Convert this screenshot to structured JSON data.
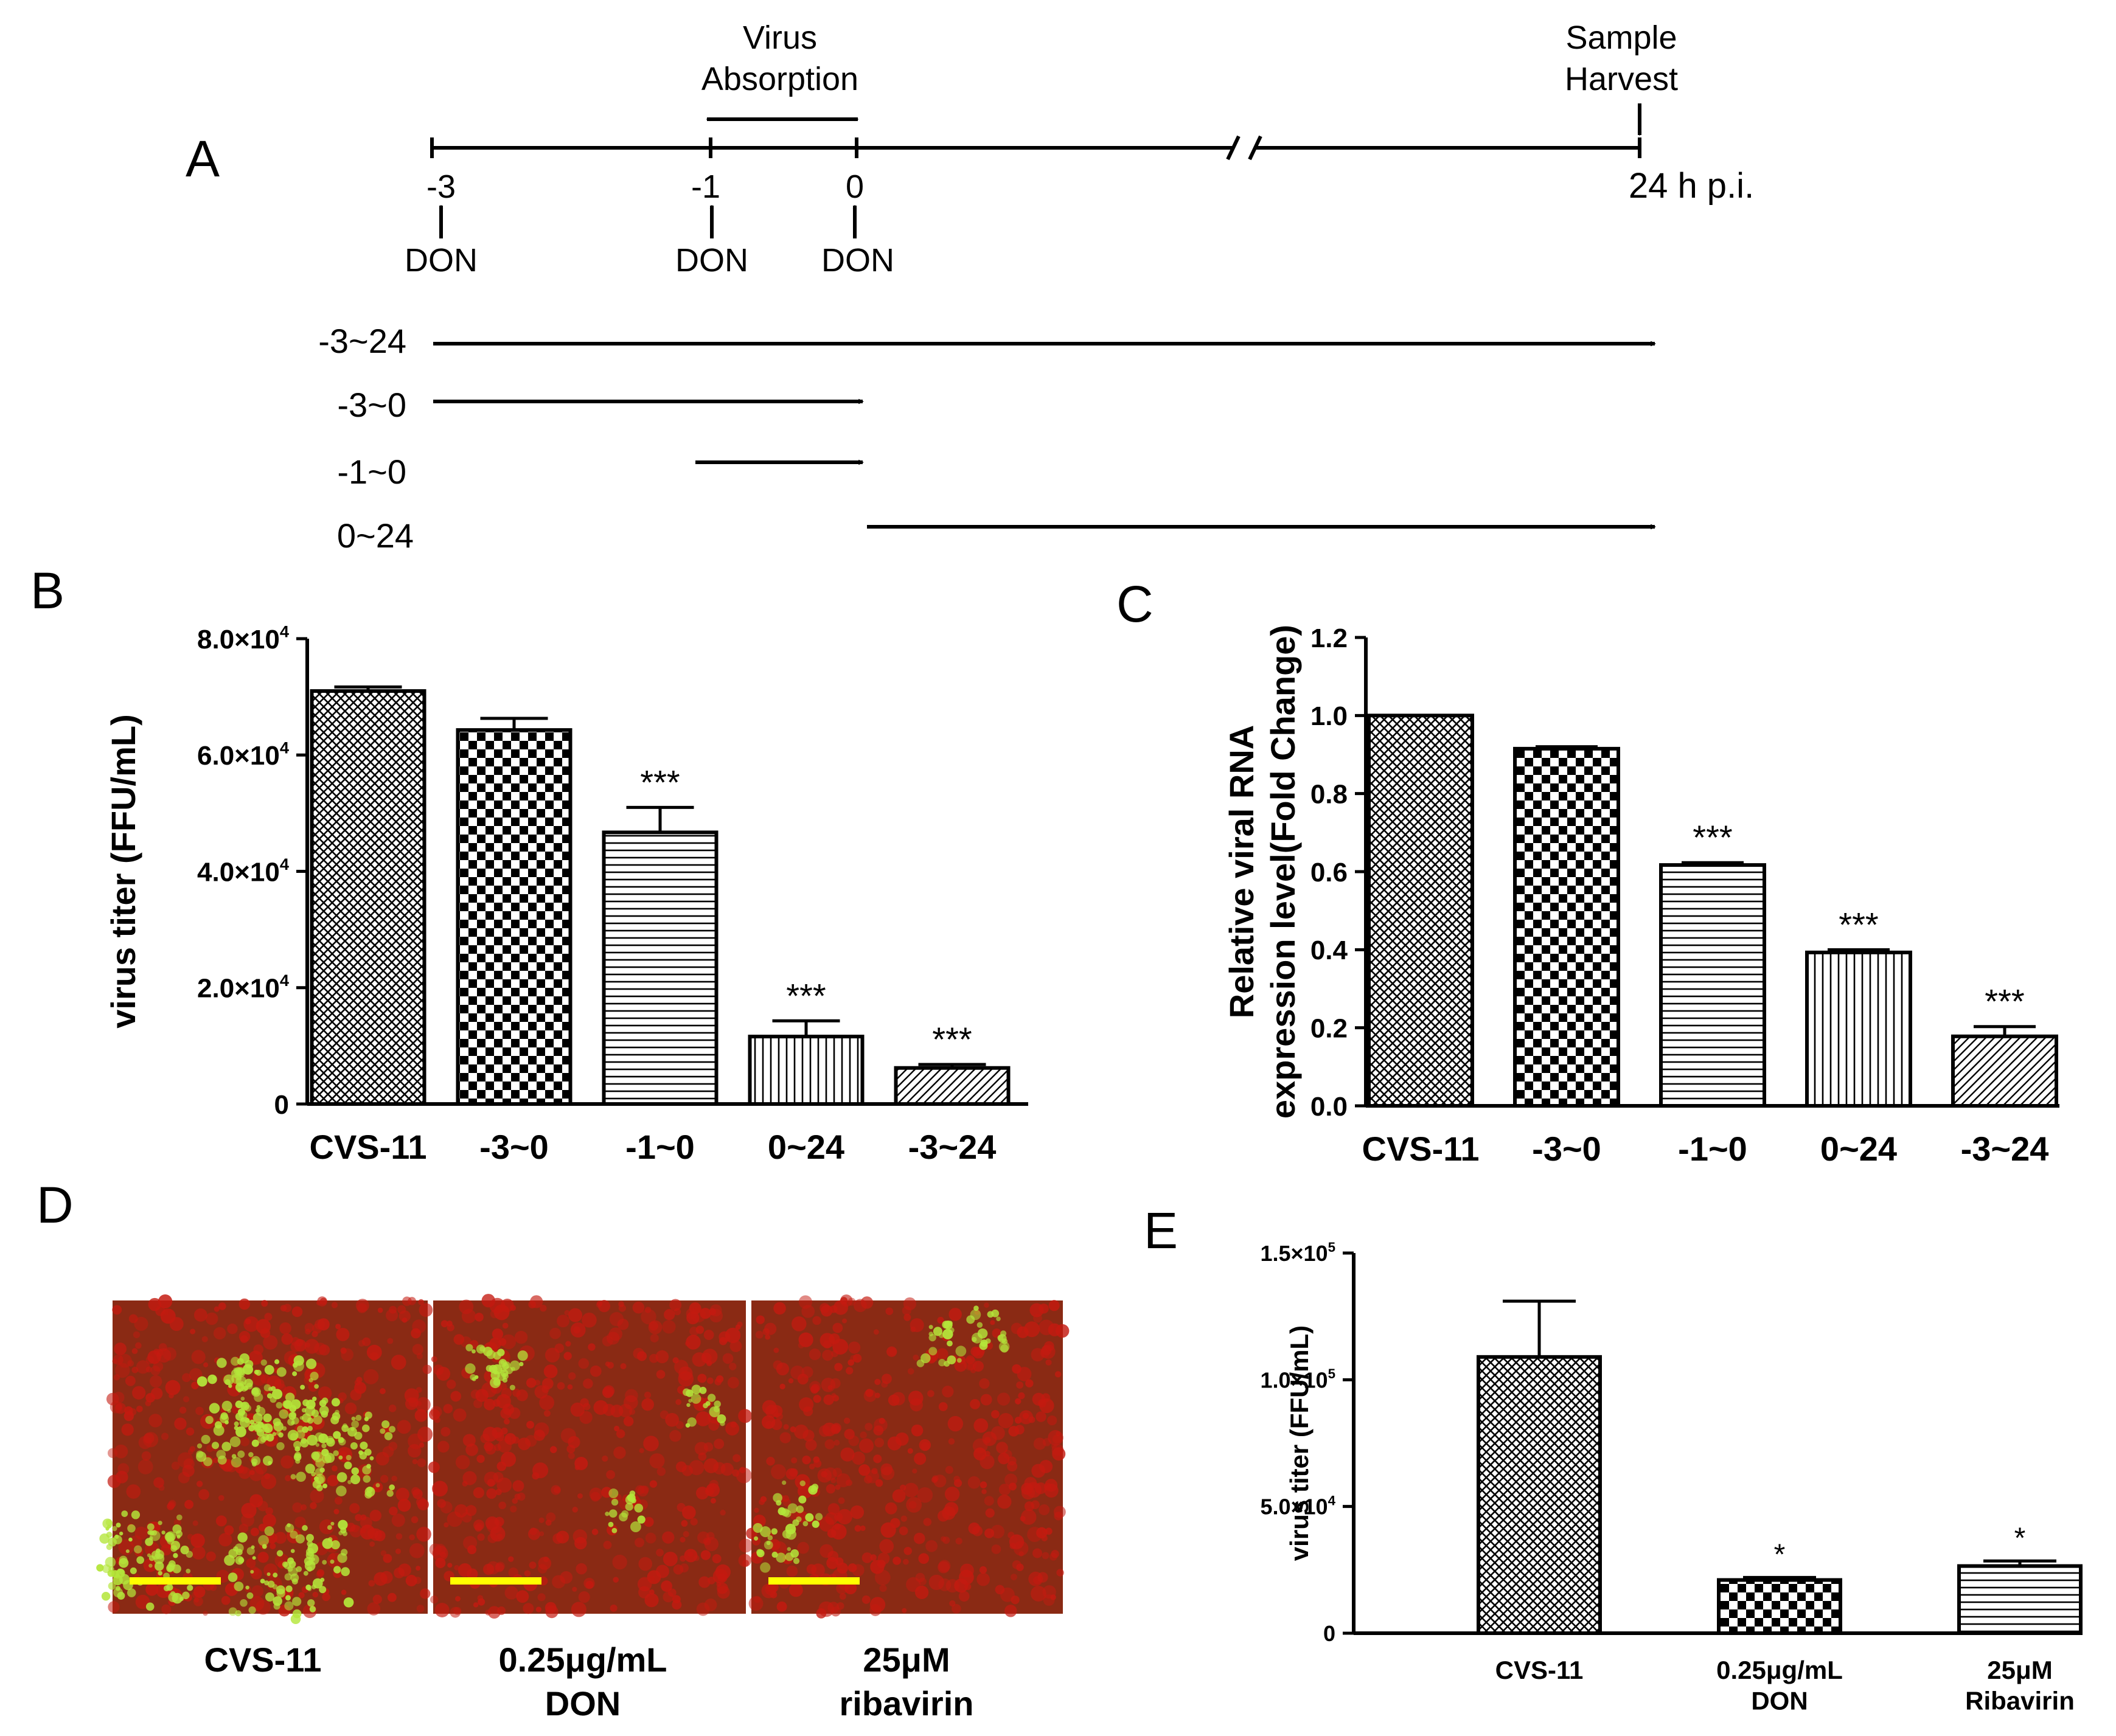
{
  "panel_letters": {
    "a": "A",
    "b": "B",
    "c": "C",
    "d": "D",
    "e": "E"
  },
  "timeline": {
    "virus_label": [
      "Virus",
      "Absorption"
    ],
    "sample_label": [
      "Sample",
      "Harvest"
    ],
    "ticks": [
      "-3",
      "-1",
      "0"
    ],
    "end_label": "24 h p.i.",
    "don_label": "DON",
    "treatments": [
      "-3~24",
      "-3~0",
      "-1~0",
      "0~24"
    ]
  },
  "chart_data": [
    {
      "panel": "B",
      "type": "bar",
      "ylabel": "virus titer (FFU/mL)",
      "categories": [
        "CVS-11",
        "-3~0",
        "-1~0",
        "0~24",
        "-3~24"
      ],
      "values": [
        71000,
        64300,
        46700,
        11600,
        6200
      ],
      "errors": [
        700,
        2000,
        4300,
        2700,
        600
      ],
      "significance": [
        "",
        "",
        "***",
        "***",
        "***"
      ],
      "ylim": [
        0,
        80000
      ],
      "yticks": [
        0,
        20000,
        40000,
        60000,
        80000
      ],
      "ytick_labels": [
        {
          "mant": "0",
          "exp": ""
        },
        {
          "mant": "2.0×10",
          "exp": "4"
        },
        {
          "mant": "4.0×10",
          "exp": "4"
        },
        {
          "mant": "6.0×10",
          "exp": "4"
        },
        {
          "mant": "8.0×10",
          "exp": "4"
        }
      ],
      "patterns": [
        "crosshatch",
        "checker",
        "hlines",
        "vlines",
        "diag"
      ]
    },
    {
      "panel": "C",
      "type": "bar",
      "ylabel_lines": [
        "Relative viral RNA",
        "expression level(Fold Change)"
      ],
      "categories": [
        "CVS-11",
        "-3~0",
        "-1~0",
        "0~24",
        "-3~24"
      ],
      "values": [
        1.0,
        0.915,
        0.617,
        0.393,
        0.178
      ],
      "errors": [
        0.0,
        0.005,
        0.006,
        0.007,
        0.025
      ],
      "significance": [
        "",
        "",
        "***",
        "***",
        "***"
      ],
      "ylim": [
        0,
        1.2
      ],
      "yticks": [
        0,
        0.2,
        0.4,
        0.6,
        0.8,
        1.0,
        1.2
      ],
      "ytick_labels": [
        {
          "mant": "0.0",
          "exp": ""
        },
        {
          "mant": "0.2",
          "exp": ""
        },
        {
          "mant": "0.4",
          "exp": ""
        },
        {
          "mant": "0.6",
          "exp": ""
        },
        {
          "mant": "0.8",
          "exp": ""
        },
        {
          "mant": "1.0",
          "exp": ""
        },
        {
          "mant": "1.2",
          "exp": ""
        }
      ],
      "patterns": [
        "crosshatch",
        "checker",
        "hlines",
        "vlines",
        "diag"
      ]
    },
    {
      "panel": "E",
      "type": "bar",
      "ylabel": "virus titer (FFU/mL)",
      "categories": [
        [
          "CVS-11"
        ],
        [
          "0.25μg/mL",
          "DON"
        ],
        [
          "25μM",
          "Ribavirin"
        ]
      ],
      "values": [
        109000,
        21000,
        26500
      ],
      "errors": [
        22000,
        1000,
        2000
      ],
      "significance": [
        "",
        "*",
        "*"
      ],
      "ylim": [
        0,
        150000
      ],
      "yticks": [
        0,
        50000,
        100000,
        150000
      ],
      "ytick_labels": [
        {
          "mant": "0",
          "exp": ""
        },
        {
          "mant": "5.0×10",
          "exp": "4"
        },
        {
          "mant": "1.0×10",
          "exp": "5"
        },
        {
          "mant": "1.5×10",
          "exp": "5"
        }
      ],
      "patterns": [
        "crosshatch",
        "checker",
        "hlines"
      ]
    }
  ],
  "micrographs": {
    "labels": [
      [
        "CVS-11"
      ],
      [
        "0.25μg/mL",
        "DON"
      ],
      [
        "25μM",
        "ribavirin"
      ]
    ],
    "colors": {
      "background": "#8a2a14",
      "red": "#c41a10",
      "green": "#b4e63a",
      "scale_bar": "#ffff00"
    },
    "infection_level": [
      0.85,
      0.2,
      0.25
    ]
  }
}
